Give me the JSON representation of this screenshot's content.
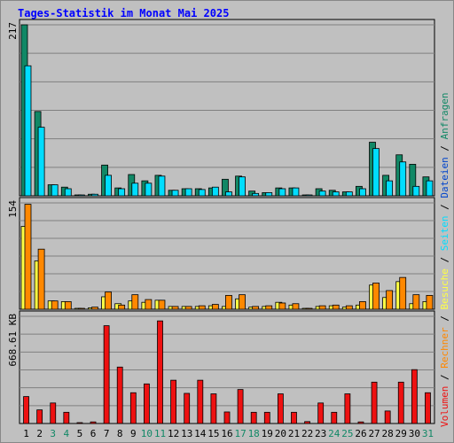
{
  "chart_data": {
    "type": "bar",
    "title": "Tages-Statistik im Monat Mai 2025",
    "categories": [
      "1",
      "2",
      "3",
      "4",
      "5",
      "6",
      "7",
      "8",
      "9",
      "10",
      "11",
      "12",
      "13",
      "14",
      "15",
      "16",
      "17",
      "18",
      "19",
      "20",
      "21",
      "22",
      "23",
      "24",
      "25",
      "26",
      "27",
      "28",
      "29",
      "30",
      "31"
    ],
    "weekend_days": [
      "3",
      "4",
      "10",
      "11",
      "17",
      "18",
      "24",
      "25",
      "31"
    ],
    "panels": [
      {
        "name": "requests",
        "ymax_label": "217",
        "ymax": 217,
        "series": [
          {
            "name": "Anfragen",
            "color": "#118866",
            "values": [
              217,
              107,
              14,
              11,
              0,
              2,
              39,
              10,
              27,
              19,
              26,
              7,
              9,
              9,
              10,
              21,
              25,
              6,
              4,
              10,
              10,
              1,
              9,
              7,
              5,
              12,
              68,
              26,
              52,
              40,
              24
            ]
          },
          {
            "name": "Dateien",
            "color": "#00ddff",
            "values": [
              165,
              87,
              14,
              9,
              0,
              2,
              26,
              9,
              16,
              16,
              25,
              7,
              9,
              8,
              11,
              5,
              24,
              3,
              4,
              9,
              10,
              1,
              6,
              5,
              5,
              9,
              60,
              19,
              43,
              12,
              19
            ]
          }
        ]
      },
      {
        "name": "pages",
        "ymax_label": "154",
        "ymax": 154,
        "series": [
          {
            "name": "Seiten",
            "color": "#ffff44",
            "values": [
              120,
              70,
              12,
              11,
              0,
              2,
              18,
              8,
              12,
              10,
              13,
              4,
              4,
              4,
              5,
              4,
              15,
              3,
              4,
              10,
              6,
              1,
              4,
              5,
              3,
              6,
              35,
              17,
              40,
              8,
              11
            ]
          },
          {
            "name": "Besuche",
            "color": "#ff8800",
            "values": [
              152,
              87,
              12,
              11,
              0,
              3,
              25,
              6,
              21,
              14,
              13,
              4,
              4,
              5,
              7,
              20,
              21,
              4,
              5,
              9,
              8,
              1,
              5,
              6,
              5,
              11,
              38,
              27,
              46,
              21,
              20
            ]
          }
        ]
      },
      {
        "name": "volume",
        "ymax_label": "668.61 KB",
        "ymax": 668.61,
        "series": [
          {
            "name": "Volumen",
            "color": "#ee1111",
            "values": [
              168,
              85,
              128,
              70,
              0,
              10,
              610,
              352,
              192,
              247,
              640,
              270,
              188,
              270,
              185,
              72,
              212,
              70,
              70,
              185,
              70,
              12,
              128,
              70,
              185,
              10,
              258,
              78,
              258,
              336,
              192
            ]
          }
        ]
      }
    ],
    "legend": {
      "items": [
        {
          "label": "Volumen",
          "color": "#ee1111"
        },
        {
          "label": "Rechner",
          "color": "#ff8800"
        },
        {
          "label": "Besuche",
          "color": "#ffff44"
        },
        {
          "label": "Seiten",
          "color": "#00ddff"
        },
        {
          "label": "Dateien",
          "color": "#0044cc"
        },
        {
          "label": "Anfragen",
          "color": "#118866"
        }
      ],
      "separator": " / ",
      "placement": "right-vertical"
    },
    "colors": {
      "title": "#0000ff",
      "weekday_label": "#000000",
      "weekend_label": "#118866",
      "grid": "#808080",
      "background": "#c0c0c0"
    }
  }
}
